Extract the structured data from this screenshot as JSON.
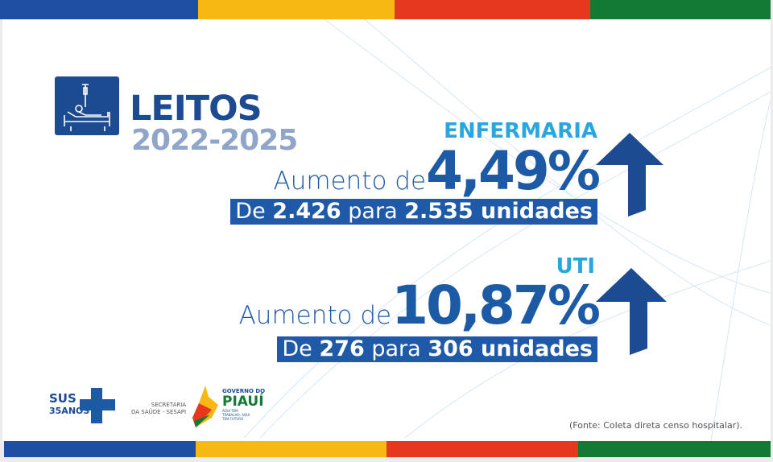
{
  "colors": {
    "blue": "#1e4fa0",
    "yellow": "#f7b813",
    "red": "#e5381f",
    "green": "#137a35",
    "accent": "#1c5aa6",
    "cyan": "#2aa6de"
  },
  "header": {
    "icon": "hospital-bed-icon",
    "title": "LEITOS",
    "years": "2022-2025"
  },
  "enfermaria": {
    "label": "ENFERMARIA",
    "prefix": "Aumento de",
    "percent": "4,49%",
    "from_label": "De",
    "from": "2.426",
    "to_label": "para",
    "to": "2.535 unidades",
    "icon": "arrow-up-icon"
  },
  "uti": {
    "label": "UTI",
    "prefix": "Aumento de",
    "percent": "10,87%",
    "from_label": "De",
    "from": "276",
    "to_label": "para",
    "to": "306 unidades",
    "icon": "arrow-up-icon"
  },
  "logos": {
    "sus": "SUS",
    "sus_years": "35ANOS",
    "secretaria_line1": "SECRETARIA",
    "secretaria_line2": "DA SAÚDE - SESAPI",
    "gov_line1": "GOVERNO DO",
    "gov_line2": "PIAUÍ",
    "gov_line3": "AQUI TEM TRABALHO, AQUI TEM FUTURO"
  },
  "source": "(Fonte: Coleta direta censo hospitalar)."
}
